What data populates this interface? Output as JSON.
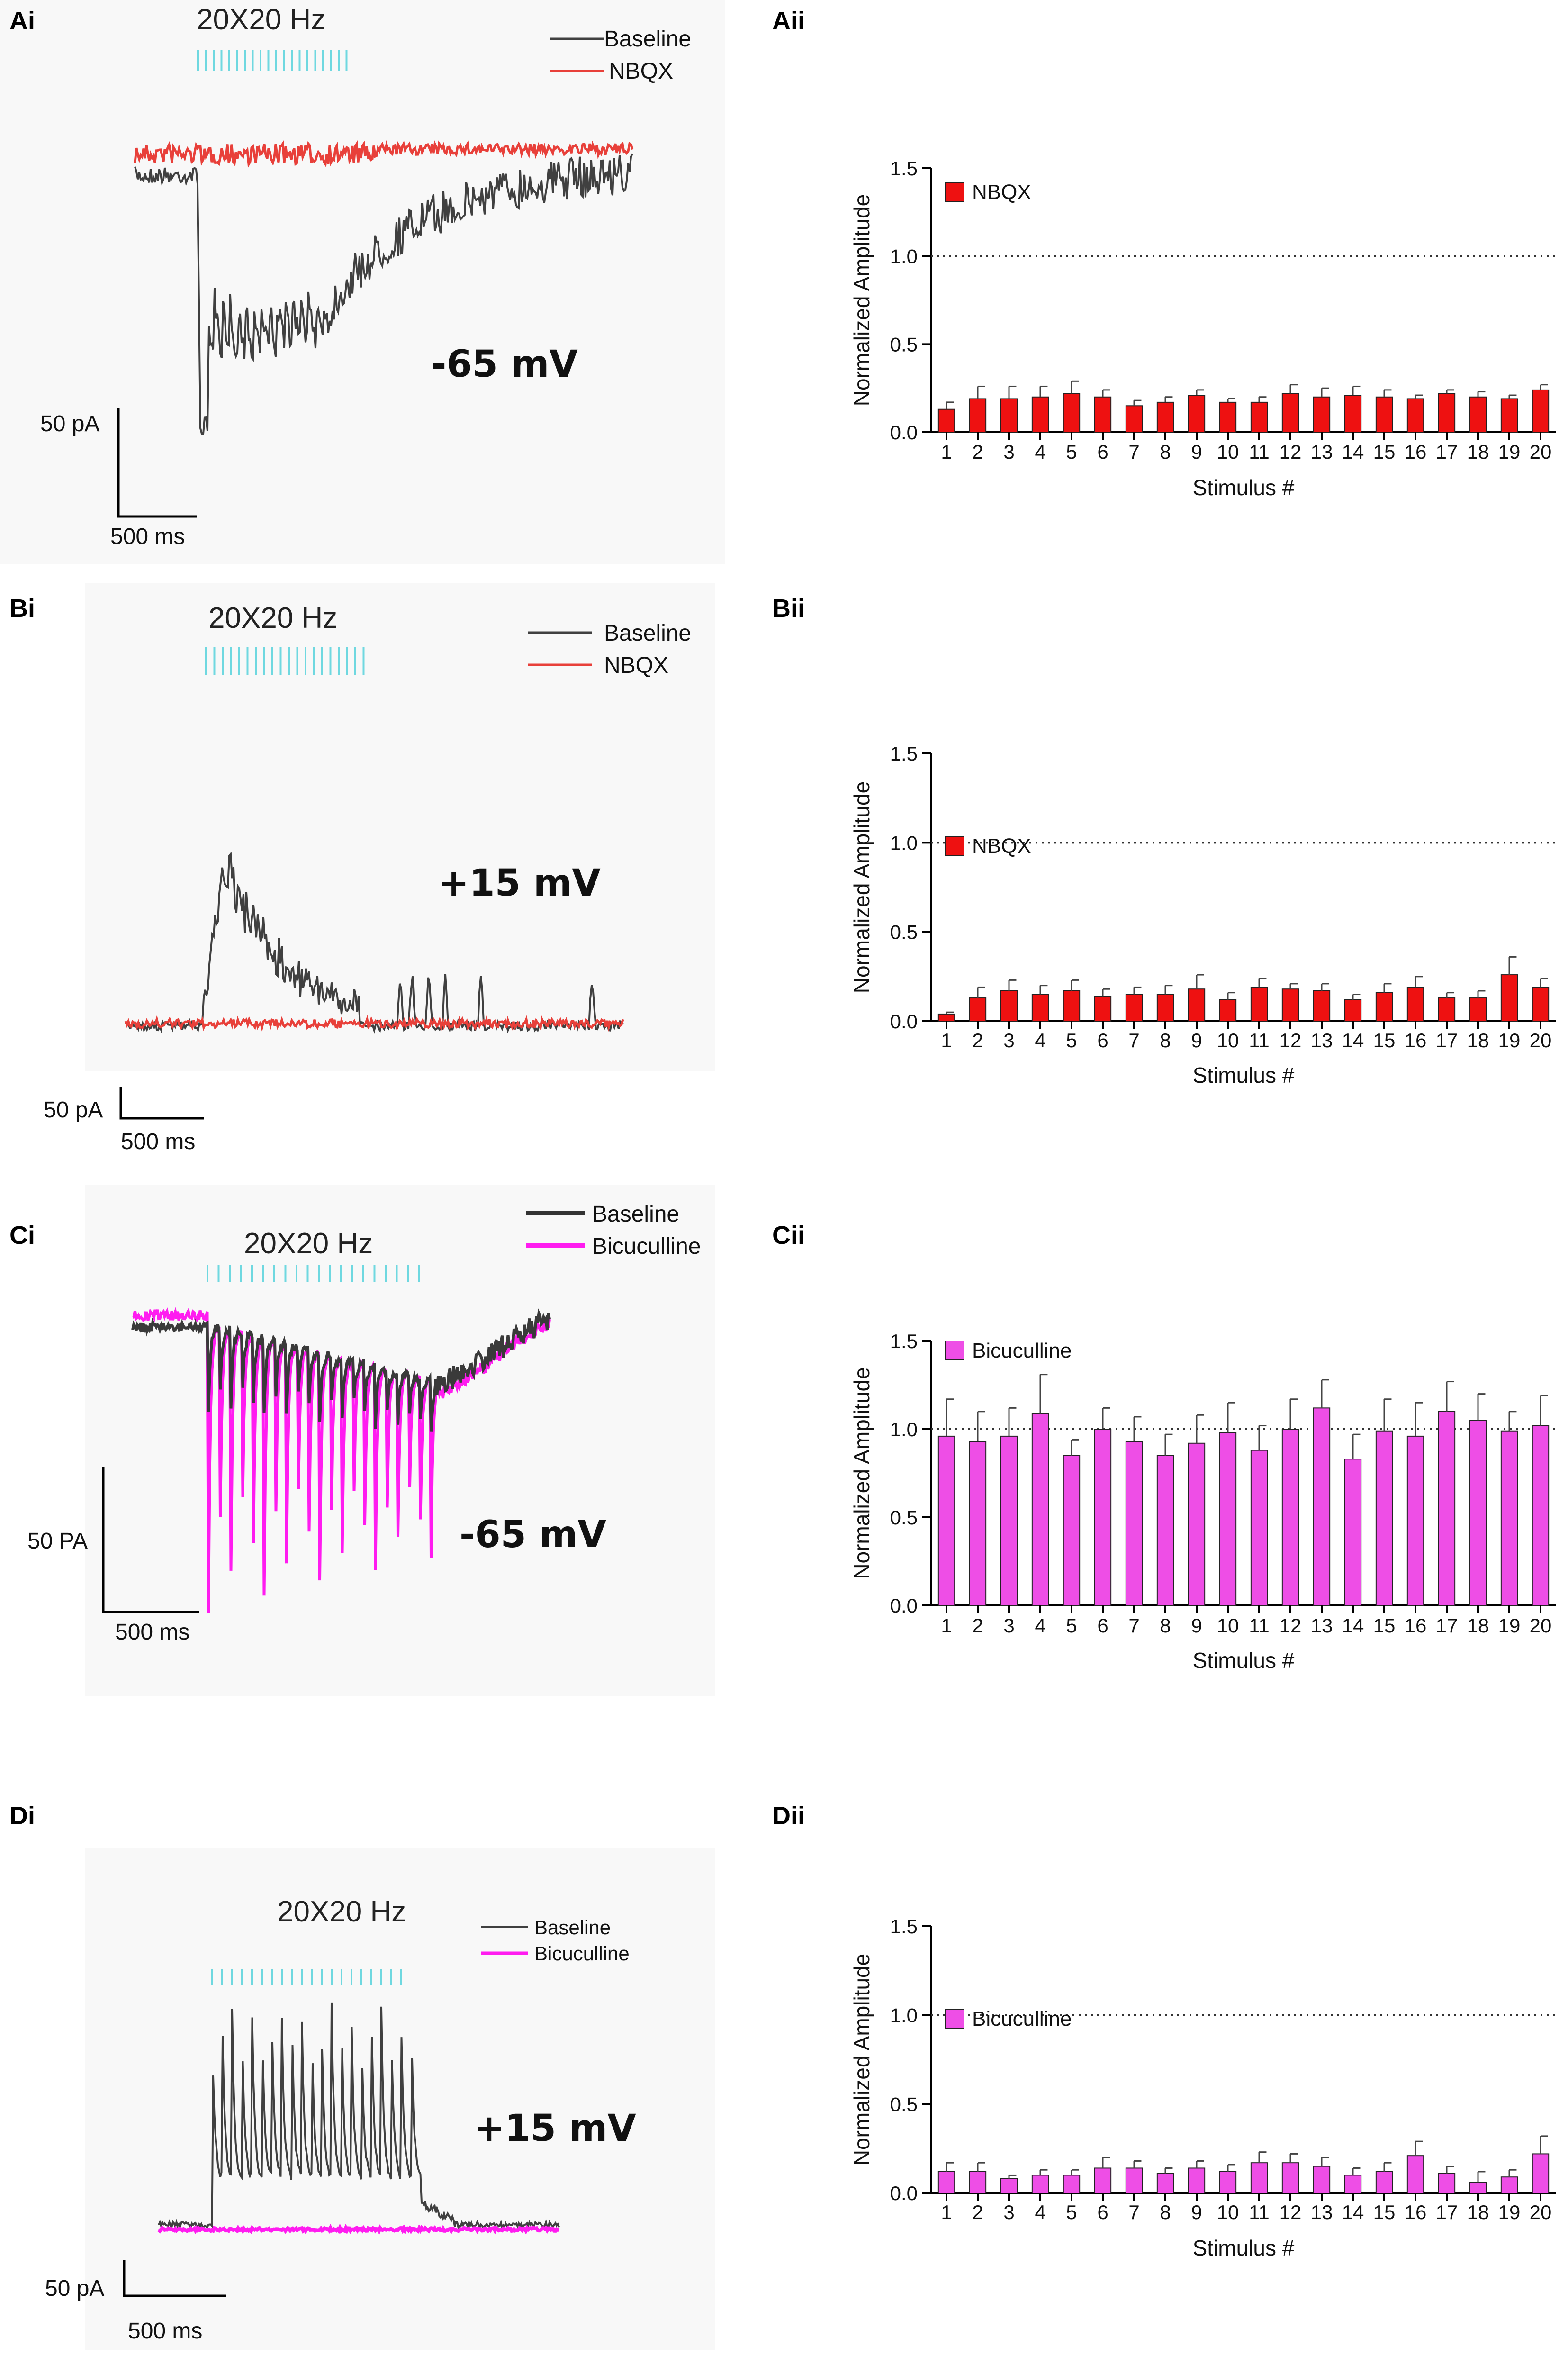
{
  "figure": {
    "panels": {
      "Ai": {
        "label": "Ai",
        "stimulus": "20X20 Hz",
        "voltage": "-65 mV",
        "legend": [
          "Baseline",
          "NBQX"
        ],
        "scale_y": "50 pA",
        "scale_x": "500 ms",
        "colors": {
          "baseline": "#404040",
          "drug": "#e8403a",
          "stim": "#6fd8e0"
        }
      },
      "Bi": {
        "label": "Bi",
        "stimulus": "20X20 Hz",
        "voltage": "+15 mV",
        "legend": [
          "Baseline",
          "NBQX"
        ],
        "scale_y": "50 pA",
        "scale_x": "500 ms",
        "colors": {
          "baseline": "#404040",
          "drug": "#e8403a",
          "stim": "#6fd8e0"
        }
      },
      "Ci": {
        "label": "Ci",
        "stimulus": "20X20 Hz",
        "voltage": "-65 mV",
        "legend": [
          "Baseline",
          "Bicuculline"
        ],
        "scale_y": "50 PA",
        "scale_x": "500 ms",
        "colors": {
          "baseline": "#404040",
          "drug": "#ff1cf0",
          "stim": "#6fd8e0"
        }
      },
      "Di": {
        "label": "Di",
        "stimulus": "20X20 Hz",
        "voltage": "+15 mV",
        "legend": [
          "Baseline",
          "Bicuculline"
        ],
        "scale_y": "50 pA",
        "scale_x": "500 ms",
        "colors": {
          "baseline": "#404040",
          "drug": "#ff1cf0",
          "stim": "#6fd8e0"
        }
      }
    }
  },
  "chart_data": [
    {
      "id": "Aii",
      "label": "Aii",
      "type": "bar",
      "legend": "NBQX",
      "color": "#ee1111",
      "xlabel": "Stimulus #",
      "ylabel": "Normalized Amplitude",
      "ylim": [
        0,
        1.5
      ],
      "yticks": [
        "0.0",
        "0.5",
        "1.0",
        "1.5"
      ],
      "reference_line": 1.0,
      "categories": [
        "1",
        "2",
        "3",
        "4",
        "5",
        "6",
        "7",
        "8",
        "9",
        "10",
        "11",
        "12",
        "13",
        "14",
        "15",
        "16",
        "17",
        "18",
        "19",
        "20"
      ],
      "values": [
        0.13,
        0.19,
        0.19,
        0.2,
        0.22,
        0.2,
        0.15,
        0.17,
        0.21,
        0.17,
        0.17,
        0.22,
        0.2,
        0.21,
        0.2,
        0.19,
        0.22,
        0.2,
        0.19,
        0.24
      ],
      "errors": [
        0.04,
        0.07,
        0.07,
        0.06,
        0.07,
        0.04,
        0.03,
        0.03,
        0.03,
        0.02,
        0.03,
        0.05,
        0.05,
        0.05,
        0.04,
        0.02,
        0.02,
        0.03,
        0.02,
        0.03
      ]
    },
    {
      "id": "Bii",
      "label": "Bii",
      "type": "bar",
      "legend": "NBQX",
      "color": "#ee1111",
      "xlabel": "Stimulus #",
      "ylabel": "Normalized Amplitude",
      "ylim": [
        0,
        1.5
      ],
      "yticks": [
        "0.0",
        "0.5",
        "1.0",
        "1.5"
      ],
      "reference_line": 1.0,
      "categories": [
        "1",
        "2",
        "3",
        "4",
        "5",
        "6",
        "7",
        "8",
        "9",
        "10",
        "11",
        "12",
        "13",
        "14",
        "15",
        "16",
        "17",
        "18",
        "19",
        "20"
      ],
      "values": [
        0.04,
        0.13,
        0.17,
        0.15,
        0.17,
        0.14,
        0.15,
        0.15,
        0.18,
        0.12,
        0.19,
        0.18,
        0.17,
        0.12,
        0.16,
        0.19,
        0.13,
        0.13,
        0.26,
        0.19
      ],
      "errors": [
        0.01,
        0.06,
        0.06,
        0.05,
        0.06,
        0.04,
        0.04,
        0.05,
        0.08,
        0.04,
        0.05,
        0.03,
        0.04,
        0.03,
        0.05,
        0.06,
        0.03,
        0.04,
        0.1,
        0.05
      ]
    },
    {
      "id": "Cii",
      "label": "Cii",
      "type": "bar",
      "legend": "Bicuculline",
      "color": "#ee4ee6",
      "xlabel": "Stimulus #",
      "ylabel": "Normalized Amplitude",
      "ylim": [
        0,
        1.5
      ],
      "yticks": [
        "0.0",
        "0.5",
        "1.0",
        "1.5"
      ],
      "reference_line": 1.0,
      "categories": [
        "1",
        "2",
        "3",
        "4",
        "5",
        "6",
        "7",
        "8",
        "9",
        "10",
        "11",
        "12",
        "13",
        "14",
        "15",
        "16",
        "17",
        "18",
        "19",
        "20"
      ],
      "values": [
        0.96,
        0.93,
        0.96,
        1.09,
        0.85,
        1.0,
        0.93,
        0.85,
        0.92,
        0.98,
        0.88,
        1.0,
        1.12,
        0.83,
        0.99,
        0.96,
        1.1,
        1.05,
        0.99,
        1.02
      ],
      "errors": [
        0.21,
        0.17,
        0.16,
        0.22,
        0.09,
        0.12,
        0.14,
        0.12,
        0.16,
        0.17,
        0.14,
        0.17,
        0.16,
        0.14,
        0.18,
        0.19,
        0.17,
        0.15,
        0.11,
        0.17
      ]
    },
    {
      "id": "Dii",
      "label": "Dii",
      "type": "bar",
      "legend": "Bicuculline",
      "color": "#ee4ee6",
      "xlabel": "Stimulus #",
      "ylabel": "Normalized Amplitude",
      "ylim": [
        0,
        1.5
      ],
      "yticks": [
        "0.0",
        "0.5",
        "1.0",
        "1.5"
      ],
      "reference_line": 1.0,
      "categories": [
        "1",
        "2",
        "3",
        "4",
        "5",
        "6",
        "7",
        "8",
        "9",
        "10",
        "11",
        "12",
        "13",
        "14",
        "15",
        "16",
        "17",
        "18",
        "19",
        "20"
      ],
      "values": [
        0.12,
        0.12,
        0.08,
        0.1,
        0.1,
        0.14,
        0.14,
        0.11,
        0.14,
        0.12,
        0.17,
        0.17,
        0.15,
        0.1,
        0.12,
        0.21,
        0.11,
        0.06,
        0.09,
        0.22
      ],
      "errors": [
        0.05,
        0.05,
        0.02,
        0.03,
        0.03,
        0.06,
        0.04,
        0.03,
        0.04,
        0.04,
        0.06,
        0.05,
        0.05,
        0.04,
        0.05,
        0.08,
        0.04,
        0.06,
        0.04,
        0.1
      ]
    }
  ]
}
